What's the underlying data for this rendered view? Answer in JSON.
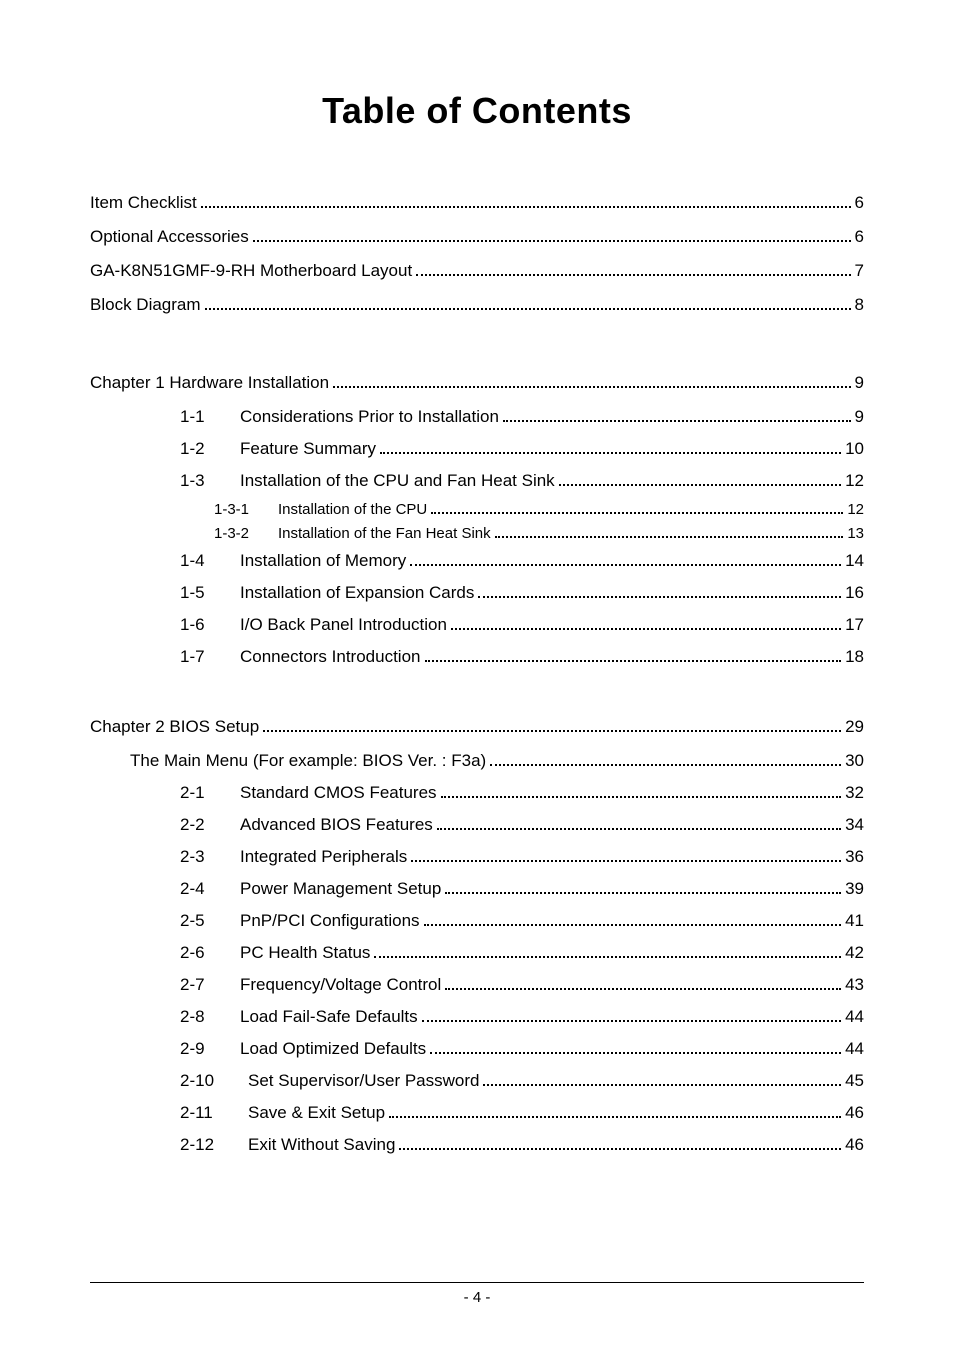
{
  "title": "Table of Contents",
  "front": [
    {
      "label": "Item Checklist",
      "page": "6"
    },
    {
      "label": "Optional Accessories",
      "page": "6"
    },
    {
      "label": "GA-K8N51GMF-9-RH Motherboard Layout",
      "page": "7"
    },
    {
      "label": "Block Diagram",
      "page": "8"
    }
  ],
  "chapters": [
    {
      "heading_label": "Chapter 1  Hardware Installation",
      "heading_page": "9",
      "entries": [
        {
          "num": "1-1",
          "label": "Considerations Prior to Installation",
          "page": "9"
        },
        {
          "num": "1-2",
          "label": "Feature Summary",
          "page": "10"
        },
        {
          "num": "1-3",
          "label": "Installation of the CPU and Fan Heat Sink",
          "page": "12"
        },
        {
          "num": "1-3-1",
          "label": "Installation of the CPU",
          "page": "12",
          "sub": true
        },
        {
          "num": "1-3-2",
          "label": "Installation of the Fan Heat Sink",
          "page": "13",
          "sub": true
        },
        {
          "num": "1-4",
          "label": "Installation of Memory",
          "page": "14"
        },
        {
          "num": "1-5",
          "label": "Installation of Expansion Cards",
          "page": "16"
        },
        {
          "num": "1-6",
          "label": "I/O Back Panel Introduction",
          "page": "17"
        },
        {
          "num": "1-7",
          "label": "Connectors Introduction",
          "page": "18"
        }
      ]
    },
    {
      "heading_label": "Chapter 2  BIOS Setup",
      "heading_page": "29",
      "pre_entries": [
        {
          "label": "The Main Menu (For example: BIOS Ver. : F3a)",
          "page": "30"
        }
      ],
      "entries": [
        {
          "num": "2-1",
          "label": "Standard CMOS Features",
          "page": "32"
        },
        {
          "num": "2-2",
          "label": "Advanced BIOS Features",
          "page": "34"
        },
        {
          "num": "2-3",
          "label": "Integrated Peripherals",
          "page": "36"
        },
        {
          "num": "2-4",
          "label": "Power Management Setup",
          "page": "39"
        },
        {
          "num": "2-5",
          "label": "PnP/PCI Configurations",
          "page": "41"
        },
        {
          "num": "2-6",
          "label": "PC Health Status",
          "page": "42"
        },
        {
          "num": "2-7",
          "label": "Frequency/Voltage Control",
          "page": "43"
        },
        {
          "num": "2-8",
          "label": "Load Fail-Safe Defaults",
          "page": "44"
        },
        {
          "num": "2-9",
          "label": "Load Optimized Defaults",
          "page": "44"
        },
        {
          "num": "2-10",
          "label": "Set Supervisor/User Password",
          "page": "45"
        },
        {
          "num": "2-11",
          "label": "Save & Exit Setup",
          "page": "46"
        },
        {
          "num": "2-12",
          "label": "Exit Without Saving",
          "page": "46"
        }
      ]
    }
  ],
  "footer_page": "- 4 -"
}
